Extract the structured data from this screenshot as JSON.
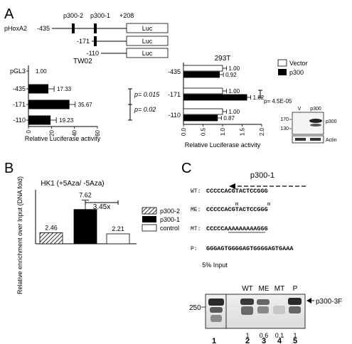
{
  "panels": {
    "a": "A",
    "b": "B",
    "c": "C"
  },
  "construct": {
    "name": "pHoxA2",
    "sites": [
      "p300-2",
      "p300-1"
    ],
    "end": "+208",
    "rows": [
      "-435",
      "-171",
      "-110"
    ],
    "reporter": "Luc"
  },
  "chart_data": [
    {
      "type": "bar",
      "title": "TW02",
      "xlabel": "Relative Luciferase activity",
      "xlim": [
        0,
        60
      ],
      "ticks": [
        "0",
        "20",
        "40",
        "60"
      ],
      "categories": [
        "pGL3",
        "-435",
        "-171",
        "-110"
      ],
      "values": [
        1.0,
        17.33,
        35.67,
        19.23
      ],
      "errors": [
        0,
        5,
        5,
        5
      ],
      "value_labels": [
        "1.00",
        "17.33",
        "35.67",
        "19.23"
      ],
      "pvalues": [
        "p= 0.015",
        "p= 0.02"
      ]
    },
    {
      "type": "bar",
      "title": "293T",
      "xlabel": "Relative Luciferase activity",
      "xlim": [
        0,
        2.0
      ],
      "ticks": [
        "0.0",
        "0.5",
        "1.0",
        "1.5",
        "2.0"
      ],
      "categories": [
        "-435",
        "-171",
        "-110"
      ],
      "series": [
        {
          "name": "Vector",
          "values": [
            1.0,
            1.0,
            1.0
          ],
          "labels": [
            "1.00",
            "1.00",
            "1.00"
          ]
        },
        {
          "name": "p300",
          "values": [
            0.92,
            1.62,
            0.87
          ],
          "labels": [
            "0.92",
            "1.62",
            "0.87"
          ]
        }
      ],
      "errors": [
        0.1,
        0.1,
        0.1
      ],
      "pvalue": "p= 4.5E-05"
    },
    {
      "type": "bar",
      "title": "HK1 (+5Aza/ -5Aza)",
      "ylabel": "Relative enrichment over Input (DNA fold)",
      "ylim": [
        0,
        12
      ],
      "categories": [
        "p300-2",
        "p300-1",
        "control"
      ],
      "values": [
        2.46,
        7.62,
        2.21
      ],
      "errors": [
        0,
        2.1,
        0
      ],
      "value_labels": [
        "2.46",
        "7.62",
        "2.21"
      ],
      "fold": "3.45x",
      "legend": [
        "p300-2",
        "p300-1",
        "control"
      ]
    }
  ],
  "western": {
    "lanes": [
      "V",
      "p300"
    ],
    "markers": [
      "170",
      "130"
    ],
    "labels": [
      "p300",
      "Actin"
    ]
  },
  "sequences": {
    "header": "p300-1",
    "rows": [
      {
        "label": "WT:",
        "seq": "CCCCCACGTACTCCGGG",
        "mark": ""
      },
      {
        "label": "ME:",
        "seq": "CCCCCACGTACTCCGGG",
        "mark": "m"
      },
      {
        "label": "MT:",
        "seq": "CCCCCAAAAAAAAAGGG",
        "mark": ""
      },
      {
        "label": "P:",
        "seq": "GGGAGTGGGGAGTGGGGAGTGAAA",
        "mark": ""
      }
    ]
  },
  "gel": {
    "input_label": "5% Input",
    "lanes": [
      "WT",
      "ME",
      "MT",
      "P"
    ],
    "marker": "250",
    "band_label": "p300-3F",
    "quant": [
      "1",
      "0.6",
      "0.1",
      "1"
    ],
    "lane_numbers": [
      "1",
      "2",
      "3",
      "4",
      "5"
    ]
  }
}
